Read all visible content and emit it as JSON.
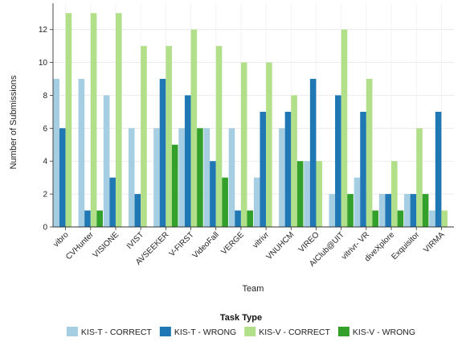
{
  "chart_data": {
    "type": "bar",
    "title": "",
    "xlabel": "Team",
    "ylabel": "Number of Submissions",
    "ylim": [
      0,
      13.6
    ],
    "yticks": [
      0,
      2,
      4,
      6,
      8,
      10,
      12
    ],
    "grid": true,
    "legend_title": "Task Type",
    "legend_position": "bottom",
    "categories": [
      "vibro",
      "CVHunter",
      "VISIONE",
      "IVIST",
      "AVSEEKER",
      "V-FIRST",
      "VideoFall",
      "VERGE",
      "vitrivr",
      "VNUHCM",
      "VIREO",
      "AIClub@UIT",
      "vitrivr- VR",
      "diveXplore",
      "Exquisitor",
      "VIRMA"
    ],
    "series": [
      {
        "name": "KIS-T - CORRECT",
        "color": "#a6cee3",
        "values": [
          9,
          9,
          8,
          6,
          6,
          6,
          6,
          6,
          3,
          6,
          4,
          2,
          3,
          2,
          2,
          1
        ]
      },
      {
        "name": "KIS-T - WRONG",
        "color": "#1f78b4",
        "values": [
          6,
          1,
          3,
          2,
          9,
          8,
          4,
          1,
          7,
          7,
          9,
          8,
          7,
          2,
          2,
          7
        ]
      },
      {
        "name": "KIS-V - CORRECT",
        "color": "#b2df8a",
        "values": [
          13,
          13,
          13,
          11,
          11,
          12,
          11,
          10,
          10,
          8,
          4,
          12,
          9,
          4,
          6,
          1
        ]
      },
      {
        "name": "KIS-V - WRONG",
        "color": "#33a02c",
        "values": [
          0,
          1,
          0,
          0,
          5,
          6,
          3,
          1,
          0,
          4,
          0,
          2,
          1,
          1,
          2,
          0
        ]
      }
    ]
  }
}
